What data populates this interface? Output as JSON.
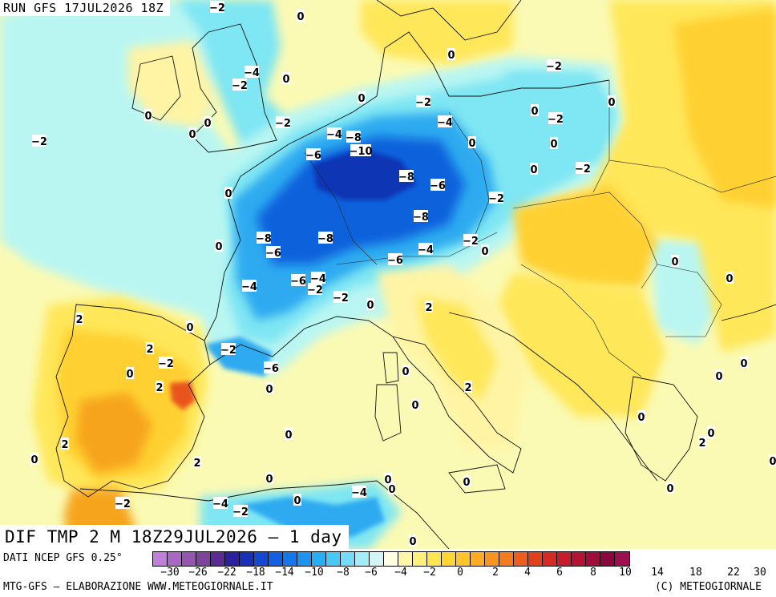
{
  "header": {
    "run_title": "RUN GFS 17JUL2026 18Z"
  },
  "map": {
    "title": "DIF TMP 2 M 18Z29JUL2026 – 1 day",
    "sea_color": "#fafab4",
    "colors": {
      "cold_light": "#b9f6f2",
      "cold_mid": "#7fe6f3",
      "cold_blue": "#2faaf0",
      "cold_deep": "#1062dc",
      "cold_core": "#0a34b4",
      "warm_light": "#fff4a4",
      "warm_yellow": "#ffe75a",
      "warm_gold": "#ffd030",
      "warm_orange": "#f6a41c",
      "hot_red": "#e8541c"
    },
    "labels": [
      {
        "t": "0"
      },
      {
        "t": "−2"
      },
      {
        "t": "−4"
      },
      {
        "t": "−2"
      },
      {
        "t": "0"
      },
      {
        "t": "0"
      },
      {
        "t": "0"
      },
      {
        "t": "0"
      },
      {
        "t": "−2"
      },
      {
        "t": "−2"
      },
      {
        "t": "−4"
      },
      {
        "t": "0"
      },
      {
        "t": "0"
      },
      {
        "t": "−2"
      },
      {
        "t": "0"
      },
      {
        "t": "−4"
      },
      {
        "t": "−8"
      },
      {
        "t": "−10"
      },
      {
        "t": "−6"
      },
      {
        "t": "−8"
      },
      {
        "t": "−6"
      },
      {
        "t": "0"
      },
      {
        "t": "0"
      },
      {
        "t": "0"
      },
      {
        "t": "−2"
      },
      {
        "t": "−2"
      },
      {
        "t": "0"
      },
      {
        "t": "−2"
      },
      {
        "t": "−2"
      },
      {
        "t": "−8"
      },
      {
        "t": "−8"
      },
      {
        "t": "−8"
      },
      {
        "t": "−6"
      },
      {
        "t": "−2"
      },
      {
        "t": "0"
      },
      {
        "t": "−4"
      },
      {
        "t": "−6"
      },
      {
        "t": "−6"
      },
      {
        "t": "−4"
      },
      {
        "t": "−4"
      },
      {
        "t": "−2"
      },
      {
        "t": "−2"
      },
      {
        "t": "0"
      },
      {
        "t": "2"
      },
      {
        "t": "0"
      },
      {
        "t": "0"
      },
      {
        "t": "2"
      },
      {
        "t": "0"
      },
      {
        "t": "2"
      },
      {
        "t": "−2"
      },
      {
        "t": "−2"
      },
      {
        "t": "−6"
      },
      {
        "t": "0"
      },
      {
        "t": "0"
      },
      {
        "t": "2"
      },
      {
        "t": "0"
      },
      {
        "t": "0"
      },
      {
        "t": "2"
      },
      {
        "t": "0"
      },
      {
        "t": "0"
      },
      {
        "t": "0"
      },
      {
        "t": "0"
      },
      {
        "t": "0"
      },
      {
        "t": "0"
      },
      {
        "t": "0"
      },
      {
        "t": "0"
      },
      {
        "t": "0"
      },
      {
        "t": "0"
      },
      {
        "t": "2"
      },
      {
        "t": "0"
      },
      {
        "t": "2"
      },
      {
        "t": "2"
      },
      {
        "t": "−2"
      },
      {
        "t": "−4"
      },
      {
        "t": "−2"
      },
      {
        "t": "0"
      },
      {
        "t": "−4"
      },
      {
        "t": "0"
      },
      {
        "t": "0"
      },
      {
        "t": "0"
      },
      {
        "t": "0"
      }
    ]
  },
  "footer": {
    "source": "DATI NCEP GFS 0.25°",
    "credit_left": "MTG-GFS – ELABORAZIONE WWW.METEOGIORNALE.IT",
    "credit_right": "(C) METEOGIORNALE"
  },
  "legend": {
    "swatches": [
      "#c080d8",
      "#a868c4",
      "#9456b0",
      "#7e449c",
      "#5a2c92",
      "#2a20a0",
      "#1830b8",
      "#1448d0",
      "#1060e0",
      "#1478ea",
      "#1c94f0",
      "#28aef4",
      "#48c8f6",
      "#74dcf8",
      "#a2ecf8",
      "#d0f6f6",
      "#fffee0",
      "#fff7a8",
      "#fff07c",
      "#ffe650",
      "#ffd632",
      "#ffc42a",
      "#ffac24",
      "#f89420",
      "#f47c1c",
      "#ec5e1c",
      "#e0401c",
      "#d42c24",
      "#c41e2c",
      "#b41434",
      "#a00c3c",
      "#8c0640",
      "#9c1050"
    ],
    "ticks": [
      "−30",
      "−26",
      "−22",
      "−18",
      "−14",
      "−10",
      "−8",
      "−6",
      "−4",
      "−2",
      "0",
      "2",
      "4",
      "6",
      "8",
      "10",
      "14",
      "18",
      "22",
      "30"
    ]
  }
}
